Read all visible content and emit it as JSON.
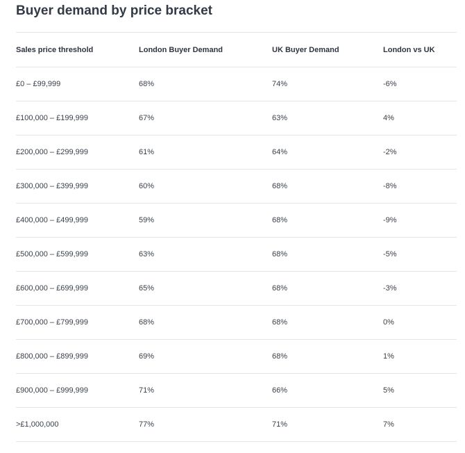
{
  "title": "Buyer demand by price bracket",
  "table": {
    "headers": [
      "Sales price threshold",
      "London Buyer Demand",
      "UK Buyer Demand",
      "London vs UK"
    ],
    "rows": [
      [
        "£0 – £99,999",
        "68%",
        "74%",
        "-6%"
      ],
      [
        "£100,000 – £199,999",
        "67%",
        "63%",
        "4%"
      ],
      [
        "£200,000 – £299,999",
        "61%",
        "64%",
        "-2%"
      ],
      [
        "£300,000 – £399,999",
        "60%",
        "68%",
        "-8%"
      ],
      [
        "£400,000 – £499,999",
        "59%",
        "68%",
        "-9%"
      ],
      [
        "£500,000 – £599,999",
        "63%",
        "68%",
        "-5%"
      ],
      [
        "£600,000 – £699,999",
        "65%",
        "68%",
        "-3%"
      ],
      [
        "£700,000 – £799,999",
        "68%",
        "68%",
        "0%"
      ],
      [
        "£800,000 – £899,999",
        "69%",
        "68%",
        "1%"
      ],
      [
        "£900,000 – £999,999",
        "71%",
        "66%",
        "5%"
      ],
      [
        ">£1,000,000",
        "77%",
        "71%",
        "7%"
      ]
    ]
  }
}
